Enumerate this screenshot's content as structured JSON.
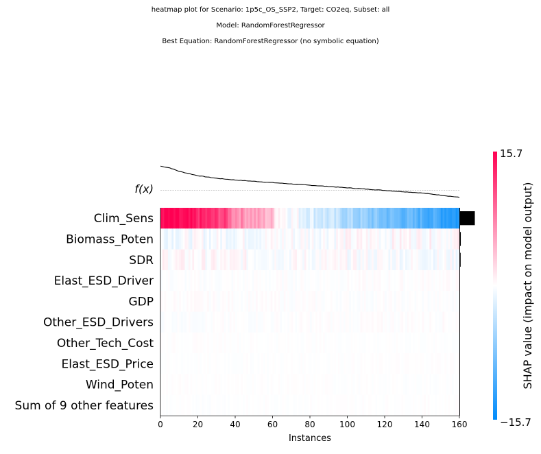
{
  "titles": [
    "heatmap plot for Scenario: 1p5c_OS_SSP2, Target: CO2eq, Subset: all",
    "Model: RandomForestRegressor",
    "Best Equation: RandomForestRegressor (no symbolic equation)"
  ],
  "chart_data": {
    "type": "heatmap",
    "xlabel": "Instances",
    "x_ticks": [
      0,
      20,
      40,
      60,
      80,
      100,
      120,
      140,
      160
    ],
    "xlim": [
      0,
      160
    ],
    "n_instances": 160,
    "fx_label": "f(x)",
    "features": [
      "Clim_Sens",
      "Biomass_Poten",
      "SDR",
      "Elast_ESD_Driver",
      "GDP",
      "Other_ESD_Drivers",
      "Other_Tech_Cost",
      "Elast_ESD_Price",
      "Wind_Poten",
      "Sum of 9 other features"
    ],
    "feature_importance_relative": [
      1.0,
      0.07,
      0.06,
      0.02,
      0.02,
      0.02,
      0.01,
      0.01,
      0.01,
      0.01
    ],
    "colorbar": {
      "label": "SHAP value (impact on model output)",
      "vmax": 15.7,
      "vmin": -15.7,
      "vmax_label": "15.7",
      "vmin_label": "−15.7",
      "color_high": "#ff0052",
      "color_mid": "#ffffff",
      "color_low": "#008bfb"
    },
    "fx_curve": {
      "approx_points": [
        [
          0,
          14.0
        ],
        [
          5,
          13.0
        ],
        [
          10,
          11.0
        ],
        [
          20,
          8.5
        ],
        [
          30,
          7.0
        ],
        [
          40,
          6.0
        ],
        [
          60,
          4.5
        ],
        [
          80,
          3.0
        ],
        [
          100,
          1.5
        ],
        [
          120,
          0.0
        ],
        [
          140,
          -1.5
        ],
        [
          160,
          -4.0
        ]
      ],
      "baseline": 0.0
    },
    "clim_sens_profile": [
      [
        0,
        15.7
      ],
      [
        20,
        13.5
      ],
      [
        36,
        11.0
      ],
      [
        38,
        8.0
      ],
      [
        60,
        4.0
      ],
      [
        62,
        1.5
      ],
      [
        70,
        0.0
      ],
      [
        85,
        -2.5
      ],
      [
        100,
        -5.0
      ],
      [
        120,
        -8.5
      ],
      [
        140,
        -10.5
      ],
      [
        160,
        -13.5
      ]
    ]
  }
}
